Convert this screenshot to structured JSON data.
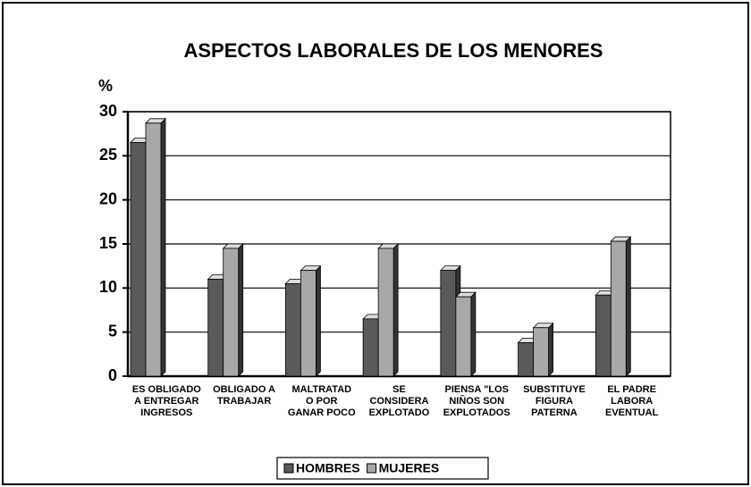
{
  "chart_data": {
    "type": "bar",
    "title": "ASPECTOS LABORALES DE LOS MENORES",
    "y_label": "%",
    "categories": [
      "ES OBLIGADO\nA ENTREGAR\nINGRESOS",
      "OBLIGADO A\nTRABAJAR",
      "MALTRATAD\nO POR\nGANAR POCO",
      "SE\nCONSIDERA\nEXPLOTADO",
      "PIENSA \"LOS\nNIÑOS SON\nEXPLOTADOS",
      "SUBSTITUYE\nFIGURA\nPATERNA",
      "EL PADRE\nLABORA\nEVENTUAL"
    ],
    "series": [
      {
        "name": "HOMBRES",
        "color": "#5a5a5a",
        "values": [
          26.5,
          11,
          10.5,
          6.5,
          12,
          3.8,
          9.2
        ]
      },
      {
        "name": "MUJERES",
        "color": "#a8a8a8",
        "values": [
          28.7,
          14.5,
          12,
          14.5,
          9,
          5.5,
          15.3
        ]
      }
    ],
    "ylim": [
      0,
      30
    ],
    "yticks": [
      0,
      5,
      10,
      15,
      20,
      25,
      30
    ],
    "grid": true,
    "legend": "bottom"
  }
}
